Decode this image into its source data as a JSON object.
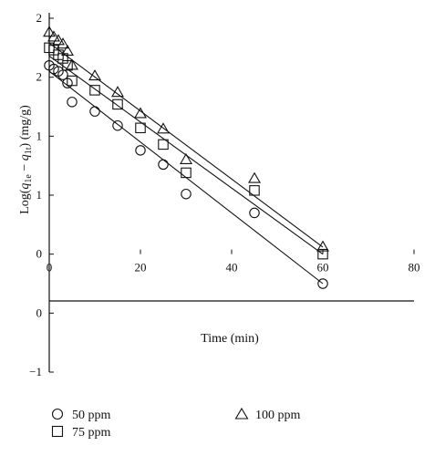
{
  "chart_data": {
    "type": "scatter",
    "xlabel": "Time (min)",
    "ylabel_parts": {
      "prefix": "Log(",
      "q1": "q",
      "s1": "1e",
      "minus": " − ",
      "q2": "q",
      "s2": "1t",
      "suffix": ") (mg/g)"
    },
    "xlim": [
      0,
      80
    ],
    "ylim": [
      -1,
      2
    ],
    "x_ticks": [
      0,
      20,
      40,
      60,
      80
    ],
    "y_ticks": [
      {
        "value": 2,
        "label": "2"
      },
      {
        "value": 1.5,
        "label": "2"
      },
      {
        "value": 1,
        "label": "1"
      },
      {
        "value": 0.5,
        "label": "1"
      },
      {
        "value": 0,
        "label": "0"
      },
      {
        "value": -0.5,
        "label": "0"
      },
      {
        "value": -1,
        "label": "−1"
      }
    ],
    "grid": false,
    "legend_position": "bottom",
    "series": [
      {
        "name": "50 ppm",
        "marker": "circle",
        "points": [
          [
            0,
            1.6
          ],
          [
            1,
            1.57
          ],
          [
            2,
            1.55
          ],
          [
            3,
            1.52
          ],
          [
            4,
            1.45
          ],
          [
            5,
            1.29
          ],
          [
            10,
            1.21
          ],
          [
            15,
            1.09
          ],
          [
            20,
            0.88
          ],
          [
            25,
            0.76
          ],
          [
            30,
            0.51
          ],
          [
            45,
            0.35
          ],
          [
            60,
            -0.25
          ]
        ],
        "fit": [
          [
            0,
            1.55
          ],
          [
            60,
            -0.25
          ]
        ]
      },
      {
        "name": "75 ppm",
        "marker": "square",
        "points": [
          [
            0,
            1.75
          ],
          [
            1,
            1.73
          ],
          [
            2,
            1.69
          ],
          [
            3,
            1.66
          ],
          [
            4,
            1.6
          ],
          [
            5,
            1.47
          ],
          [
            10,
            1.39
          ],
          [
            15,
            1.27
          ],
          [
            20,
            1.07
          ],
          [
            25,
            0.93
          ],
          [
            30,
            0.69
          ],
          [
            45,
            0.54
          ],
          [
            60,
            0.0
          ]
        ],
        "fit": [
          [
            0,
            1.68
          ],
          [
            60,
            0.0
          ]
        ]
      },
      {
        "name": "100 ppm",
        "marker": "triangle",
        "points": [
          [
            0,
            1.88
          ],
          [
            1,
            1.84
          ],
          [
            2,
            1.81
          ],
          [
            3,
            1.78
          ],
          [
            4,
            1.72
          ],
          [
            5,
            1.6
          ],
          [
            10,
            1.51
          ],
          [
            15,
            1.37
          ],
          [
            20,
            1.19
          ],
          [
            25,
            1.06
          ],
          [
            30,
            0.8
          ],
          [
            45,
            0.64
          ],
          [
            60,
            0.06
          ]
        ],
        "fit": [
          [
            0,
            1.79
          ],
          [
            60,
            0.06
          ]
        ]
      }
    ]
  }
}
